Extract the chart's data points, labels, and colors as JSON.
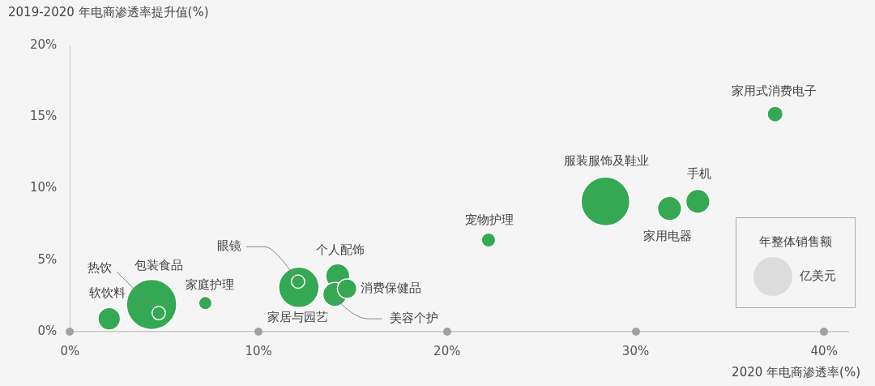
{
  "chart_data": {
    "type": "bubble",
    "ylabel": "2019-2020 年电商渗透率提升值(%)",
    "xlabel": "2020 年电商渗透率(%)",
    "xlim": [
      0,
      41.3
    ],
    "ylim": [
      0,
      20
    ],
    "xticks": [
      {
        "value": 0,
        "label": "0%"
      },
      {
        "value": 10,
        "label": "10%"
      },
      {
        "value": 20,
        "label": "20%"
      },
      {
        "value": 30,
        "label": "30%"
      },
      {
        "value": 40,
        "label": "40%"
      }
    ],
    "yticks": [
      {
        "value": 0,
        "label": "0%"
      },
      {
        "value": 5,
        "label": "5%"
      },
      {
        "value": 10,
        "label": "10%"
      },
      {
        "value": 15,
        "label": "15%"
      },
      {
        "value": 20,
        "label": "20%"
      }
    ],
    "grid": false,
    "legend": false,
    "series": [
      {
        "color": "#34a853",
        "x": [
          4.33,
          28.4,
          12.14,
          2.08,
          14.2,
          14.05,
          31.8,
          33.3,
          14.7,
          37.4,
          22.2,
          4.71,
          12.1,
          7.18
        ],
        "values": [
          1.9,
          9.1,
          3.1,
          0.9,
          3.9,
          2.6,
          8.6,
          9.1,
          3.0,
          15.2,
          6.4,
          1.3,
          3.5,
          2.0
        ],
        "sizes": [
          1,
          0.94,
          0.65,
          0.2,
          0.23,
          0.23,
          0.23,
          0.23,
          0.15,
          0.1,
          0.08,
          0.07,
          0.07,
          0.07
        ]
      }
    ],
    "annotations": [
      {
        "text": "包装食品",
        "x": 4.33,
        "y": 1.9
      },
      {
        "text": "服装服饰及鞋业",
        "x": 28.4,
        "y": 9.1
      },
      {
        "text": "家居与园艺",
        "x": 12.14,
        "y": 3.1
      },
      {
        "text": "软饮料",
        "x": 2.08,
        "y": 0.9
      },
      {
        "text": "个人配饰",
        "x": 14.2,
        "y": 3.9
      },
      {
        "text": "美容个护",
        "x": 14.05,
        "y": 2.6
      },
      {
        "text": "家用电器",
        "x": 31.8,
        "y": 8.6
      },
      {
        "text": "手机",
        "x": 33.3,
        "y": 9.1
      },
      {
        "text": "消费保健品",
        "x": 14.7,
        "y": 3.0
      },
      {
        "text": "家用式消费电子",
        "x": 37.4,
        "y": 15.2
      },
      {
        "text": "宠物护理",
        "x": 22.2,
        "y": 6.4
      },
      {
        "text": "热饮",
        "x": 4.71,
        "y": 1.3
      },
      {
        "text": "眼镜",
        "x": 12.1,
        "y": 3.5
      },
      {
        "text": "家庭护理",
        "x": 7.18,
        "y": 2.0
      },
      "年整体销售额",
      "亿美元"
    ]
  }
}
